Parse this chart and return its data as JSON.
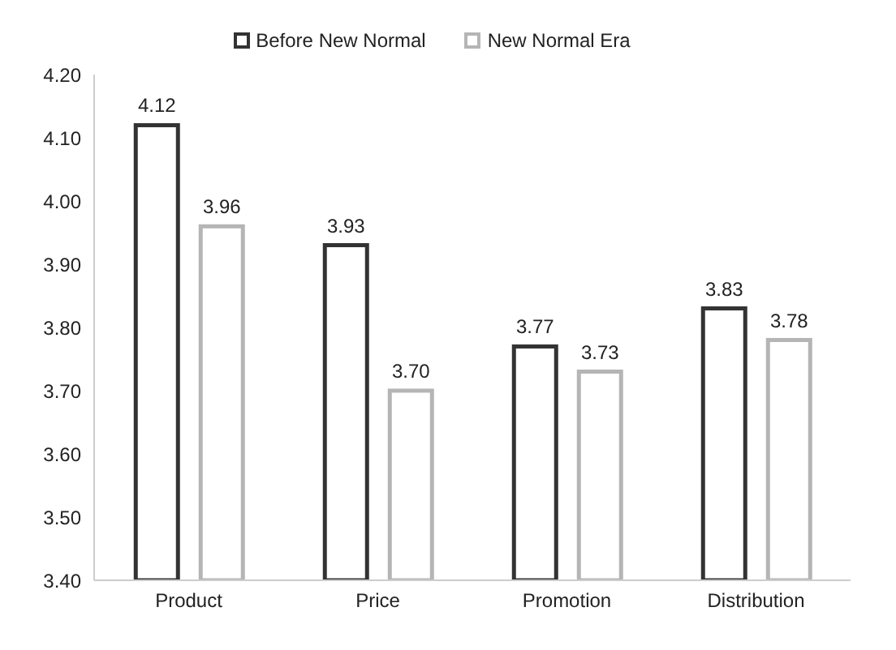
{
  "chart_data": {
    "type": "bar",
    "categories": [
      "Product",
      "Price",
      "Promotion",
      "Distribution"
    ],
    "series": [
      {
        "name": "Before New Normal",
        "color": "#333333",
        "values": [
          4.12,
          3.93,
          3.77,
          3.83
        ],
        "value_labels": [
          "4.12",
          "3.93",
          "3.77",
          "3.83"
        ]
      },
      {
        "name": "New Normal Era",
        "color": "#b5b5b5",
        "values": [
          3.96,
          3.7,
          3.73,
          3.78
        ],
        "value_labels": [
          "3.96",
          "3.70",
          "3.73",
          "3.78"
        ]
      }
    ],
    "ylim": [
      3.4,
      4.2
    ],
    "yticks": [
      {
        "value": 3.4,
        "label": "3.40"
      },
      {
        "value": 3.5,
        "label": "3.50"
      },
      {
        "value": 3.6,
        "label": "3.60"
      },
      {
        "value": 3.7,
        "label": "3.70"
      },
      {
        "value": 3.8,
        "label": "3.80"
      },
      {
        "value": 3.9,
        "label": "3.90"
      },
      {
        "value": 4.0,
        "label": "4.00"
      },
      {
        "value": 4.1,
        "label": "4.10"
      },
      {
        "value": 4.2,
        "label": "4.20"
      }
    ],
    "grid": false,
    "legend": "top"
  }
}
